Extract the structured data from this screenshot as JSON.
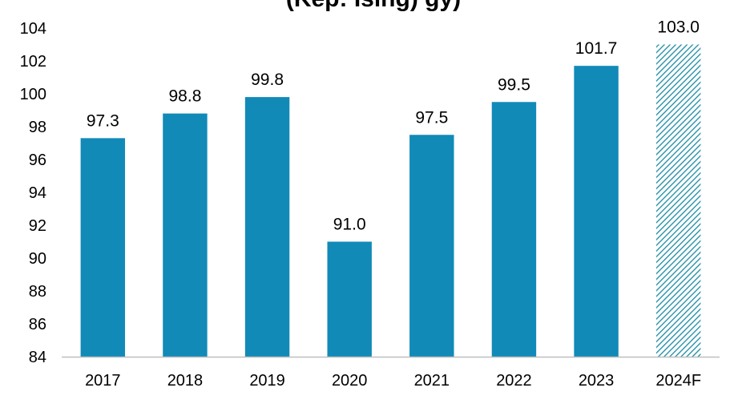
{
  "chart_data": {
    "type": "bar",
    "title": "(Kep: Ising) gy)",
    "categories": [
      "2017",
      "2018",
      "2019",
      "2020",
      "2021",
      "2022",
      "2023",
      "2024F"
    ],
    "values": [
      97.3,
      98.8,
      99.8,
      91.0,
      97.5,
      99.5,
      101.7,
      103.0
    ],
    "value_labels": [
      "97.3",
      "98.8",
      "99.8",
      "91.0",
      "97.5",
      "99.5",
      "101.7",
      "103.0"
    ],
    "forecast": [
      false,
      false,
      false,
      false,
      false,
      false,
      false,
      true
    ],
    "ylim": [
      84,
      104
    ],
    "yticks": [
      84,
      86,
      88,
      90,
      92,
      94,
      96,
      98,
      100,
      102,
      104
    ],
    "xlabel": "",
    "ylabel": "",
    "grid": false,
    "colors": {
      "bar": "#118ab8",
      "forecast_hatch": "#1a8aa3",
      "axis": "#bfbfbf"
    }
  }
}
